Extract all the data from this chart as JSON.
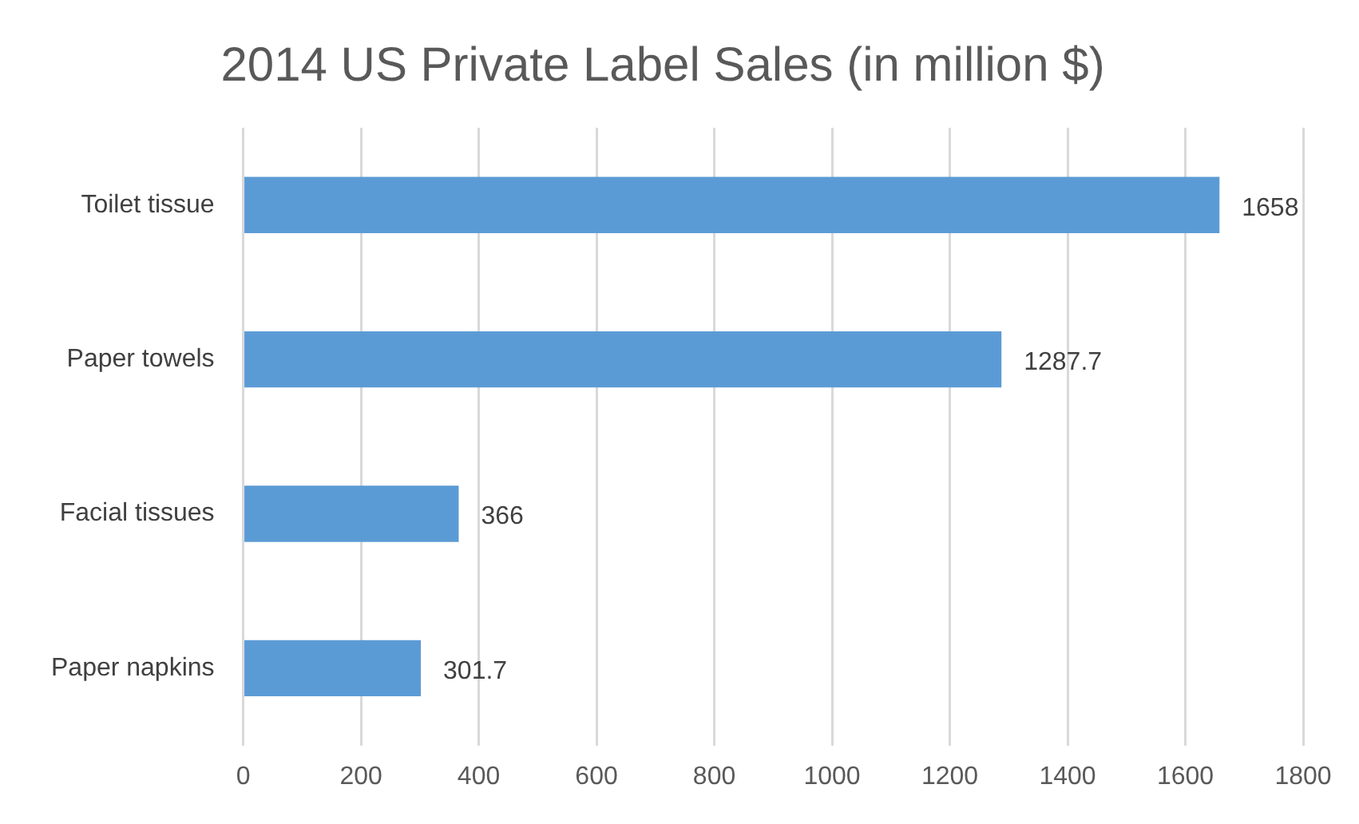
{
  "chart_data": {
    "type": "bar",
    "orientation": "horizontal",
    "title": "2014 US Private Label Sales (in million $)",
    "categories": [
      "Toilet tissue",
      "Paper towels",
      "Facial tissues",
      "Paper napkins"
    ],
    "values": [
      1658,
      1287.7,
      366,
      301.7
    ],
    "color": "#5b9bd5",
    "xlim": [
      0,
      1800
    ],
    "xticks": [
      0,
      200,
      400,
      600,
      800,
      1000,
      1200,
      1400,
      1600,
      1800
    ],
    "grid": "x",
    "legend": false,
    "data_labels": true
  }
}
